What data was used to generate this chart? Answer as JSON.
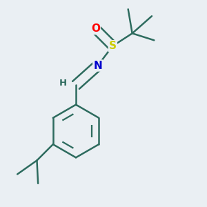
{
  "background_color": "#eaeff3",
  "bond_color": "#2d6b5e",
  "bond_width": 1.8,
  "atom_colors": {
    "O": "#ff0000",
    "S": "#cccc00",
    "N": "#0000cc",
    "C": "#2d6b5e",
    "H": "#2d6b5e"
  },
  "font_size_atoms": 11,
  "font_size_H": 9.5
}
